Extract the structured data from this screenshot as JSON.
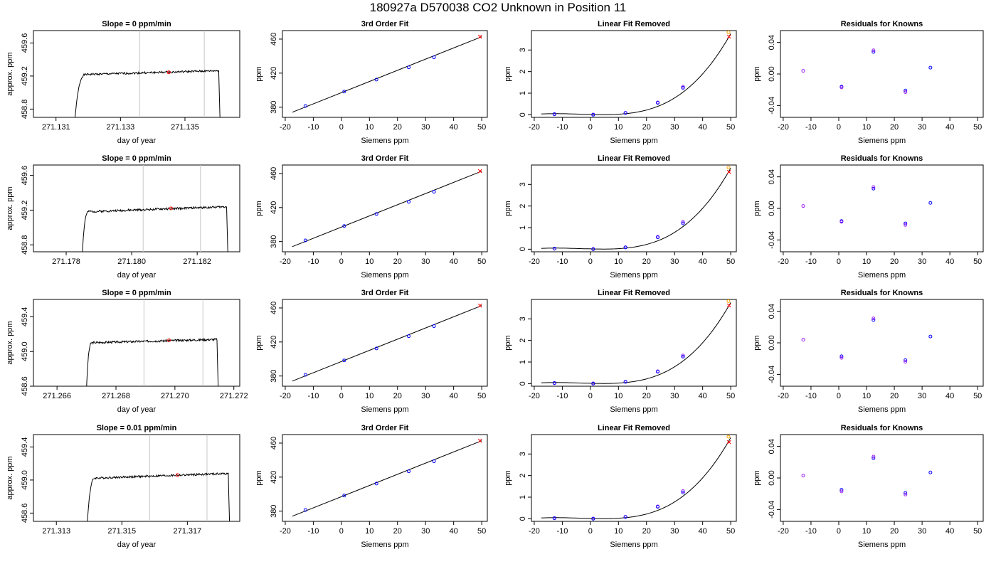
{
  "page": {
    "title": "180927a     D570038    CO2 Unknown in Position  11"
  },
  "chart_data": [
    {
      "type": "line",
      "panel": "trace",
      "title": "Slope =  0  ppm/min",
      "xlabel": "day of year",
      "ylabel": "approx. ppm",
      "xlim": [
        271.1303,
        271.1367
      ],
      "ylim": [
        458.7,
        459.75
      ],
      "xticks": [
        271.131,
        271.133,
        271.135
      ],
      "xticklabels": [
        "271.131",
        "271.133",
        "271.135"
      ],
      "yticks": [
        458.8,
        459.2,
        459.6
      ],
      "yticklabels": [
        "458.8",
        "459.2",
        "459.6"
      ],
      "vlines": [
        271.1336,
        271.1356
      ],
      "marker": {
        "x": 271.1345,
        "y": 459.245
      },
      "trace": {
        "t0": 271.13155,
        "t1": 271.1361,
        "rise_end": 271.13195,
        "base": 459.215,
        "drift": 0.05,
        "amp": 0.012,
        "seed": 1
      }
    },
    {
      "type": "line",
      "panel": "trace",
      "title": "Slope =  0  ppm/min",
      "xlabel": "day of year",
      "ylabel": "approx. ppm",
      "xlim": [
        271.177,
        271.1833
      ],
      "ylim": [
        458.72,
        459.72
      ],
      "xticks": [
        271.178,
        271.18,
        271.182
      ],
      "xticklabels": [
        "271.178",
        "271.180",
        "271.182"
      ],
      "yticks": [
        458.8,
        459.2,
        459.6
      ],
      "yticklabels": [
        "458.8",
        "459.2",
        "459.6"
      ],
      "vlines": [
        271.18035,
        271.1821
      ],
      "marker": {
        "x": 271.1812,
        "y": 459.22
      },
      "trace": {
        "t0": 271.17847,
        "t1": 271.18295,
        "rise_end": 271.1787,
        "base": 459.18,
        "drift": 0.06,
        "amp": 0.012,
        "seed": 2
      }
    },
    {
      "type": "line",
      "panel": "trace",
      "title": "Slope =  0  ppm/min",
      "xlabel": "day of year",
      "ylabel": "approx. ppm",
      "xlim": [
        271.2652,
        271.2722
      ],
      "ylim": [
        458.6,
        459.6
      ],
      "xticks": [
        271.266,
        271.268,
        271.27,
        271.272
      ],
      "xticklabels": [
        "271.266",
        "271.268",
        "271.270",
        "271.272"
      ],
      "yticks": [
        458.6,
        459.0,
        459.4
      ],
      "yticklabels": [
        "458.6",
        "459.0",
        "459.4"
      ],
      "vlines": [
        271.26895,
        271.27095
      ],
      "marker": {
        "x": 271.2698,
        "y": 459.13
      },
      "trace": {
        "t0": 271.26698,
        "t1": 271.27148,
        "rise_end": 271.2672,
        "base": 459.1,
        "drift": 0.04,
        "amp": 0.012,
        "seed": 3
      }
    },
    {
      "type": "line",
      "panel": "trace",
      "title": "Slope =  0.01  ppm/min",
      "xlabel": "day of year",
      "ylabel": "approx. ppm",
      "xlim": [
        271.3123,
        271.3186
      ],
      "ylim": [
        458.5,
        459.55
      ],
      "xticks": [
        271.313,
        271.315,
        271.317
      ],
      "xticklabels": [
        "271.313",
        "271.315",
        "271.317"
      ],
      "yticks": [
        458.6,
        459.0,
        459.4
      ],
      "yticklabels": [
        "458.6",
        "459.0",
        "459.4"
      ],
      "vlines": [
        271.31585,
        271.3176
      ],
      "marker": {
        "x": 271.3167,
        "y": 459.06
      },
      "trace": {
        "t0": 271.31392,
        "t1": 271.3183,
        "rise_end": 271.3142,
        "base": 459.02,
        "drift": 0.06,
        "amp": 0.012,
        "seed": 4
      }
    },
    {
      "type": "scatter",
      "panel": "fit3",
      "title": "3rd Order Fit",
      "xlabel": "Siemens ppm",
      "ylabel": "ppm",
      "xlim": [
        -21,
        52
      ],
      "ylim": [
        368,
        470
      ],
      "xticks": [
        -20,
        -10,
        0,
        10,
        20,
        30,
        40,
        50
      ],
      "yticks": [
        380,
        420,
        460
      ],
      "points": {
        "x": [
          -12.8,
          1.0,
          12.5,
          24.0,
          33.0
        ],
        "y": [
          381.4,
          398.3,
          412.4,
          426.8,
          438.6
        ]
      },
      "unknown": {
        "x": 49.4,
        "y": 462.8
      },
      "fit": {
        "x0": -17.5,
        "x1": 50,
        "a": 397.0,
        "b": 1.315
      }
    },
    {
      "type": "scatter",
      "panel": "fit3",
      "title": "3rd Order Fit",
      "xlabel": "Siemens ppm",
      "ylabel": "ppm",
      "xlim": [
        -21,
        52
      ],
      "ylim": [
        368,
        470
      ],
      "xticks": [
        -20,
        -10,
        0,
        10,
        20,
        30,
        40,
        50
      ],
      "yticks": [
        380,
        420,
        460
      ],
      "points": {
        "x": [
          -12.8,
          1.0,
          12.5,
          24.0,
          33.0
        ],
        "y": [
          381.4,
          398.3,
          412.4,
          426.8,
          438.6
        ]
      },
      "unknown": {
        "x": 49.4,
        "y": 462.8
      },
      "fit": {
        "x0": -17.5,
        "x1": 50,
        "a": 397.0,
        "b": 1.315
      }
    },
    {
      "type": "scatter",
      "panel": "fit3",
      "title": "3rd Order Fit",
      "xlabel": "Siemens ppm",
      "ylabel": "ppm",
      "xlim": [
        -21,
        52
      ],
      "ylim": [
        368,
        470
      ],
      "xticks": [
        -20,
        -10,
        0,
        10,
        20,
        30,
        40,
        50
      ],
      "yticks": [
        380,
        420,
        460
      ],
      "points": {
        "x": [
          -12.8,
          1.0,
          12.5,
          24.0,
          33.0
        ],
        "y": [
          381.4,
          398.3,
          412.4,
          426.8,
          438.6
        ]
      },
      "unknown": {
        "x": 49.4,
        "y": 462.8
      },
      "fit": {
        "x0": -17.5,
        "x1": 50,
        "a": 397.0,
        "b": 1.315
      }
    },
    {
      "type": "scatter",
      "panel": "fit3",
      "title": "3rd Order Fit",
      "xlabel": "Siemens ppm",
      "ylabel": "ppm",
      "xlim": [
        -21,
        52
      ],
      "ylim": [
        368,
        470
      ],
      "xticks": [
        -20,
        -10,
        0,
        10,
        20,
        30,
        40,
        50
      ],
      "yticks": [
        380,
        420,
        460
      ],
      "points": {
        "x": [
          -12.8,
          1.0,
          12.5,
          24.0,
          33.0
        ],
        "y": [
          381.4,
          398.3,
          412.4,
          426.8,
          438.6
        ]
      },
      "unknown": {
        "x": 49.4,
        "y": 462.8
      },
      "fit": {
        "x0": -17.5,
        "x1": 50,
        "a": 397.0,
        "b": 1.315
      }
    },
    {
      "type": "scatter",
      "panel": "linres",
      "title": "Linear Fit Removed",
      "xlabel": "Siemens ppm",
      "ylabel": "ppm",
      "xlim": [
        -21,
        52
      ],
      "ylim": [
        -0.12,
        3.9
      ],
      "xticks": [
        -20,
        -10,
        0,
        10,
        20,
        30,
        40,
        50
      ],
      "yticks": [
        0,
        1,
        2,
        3
      ],
      "points": {
        "x": [
          -12.8,
          1.0,
          12.5,
          24.0,
          33.0
        ],
        "y": [
          0.03,
          0.0,
          0.08,
          0.55,
          1.25
        ]
      },
      "points2": {
        "x": [
          -12.8,
          1.0,
          12.5,
          24.0,
          33.0
        ],
        "y": [
          0.02,
          0.01,
          0.09,
          0.57,
          1.3
        ]
      },
      "unknown": {
        "x": 49.4,
        "y": 3.62
      },
      "unknown2": {
        "x": 49.2,
        "y": 3.82
      },
      "fit": {
        "x0": -17.5,
        "x1": 50
      }
    },
    {
      "type": "scatter",
      "panel": "linres",
      "title": "Linear Fit Removed",
      "xlabel": "Siemens ppm",
      "ylabel": "ppm",
      "xlim": [
        -21,
        52
      ],
      "ylim": [
        -0.12,
        3.9
      ],
      "xticks": [
        -20,
        -10,
        0,
        10,
        20,
        30,
        40,
        50
      ],
      "yticks": [
        0,
        1,
        2,
        3
      ],
      "points": {
        "x": [
          -12.8,
          1.0,
          12.5,
          24.0,
          33.0
        ],
        "y": [
          0.03,
          0.0,
          0.08,
          0.55,
          1.2
        ]
      },
      "points2": {
        "x": [
          -12.8,
          1.0,
          12.5,
          24.0,
          33.0
        ],
        "y": [
          0.02,
          0.01,
          0.09,
          0.57,
          1.27
        ]
      },
      "unknown": {
        "x": 49.4,
        "y": 3.58
      },
      "unknown2": {
        "x": 49.2,
        "y": 3.78
      },
      "fit": {
        "x0": -17.5,
        "x1": 50
      }
    },
    {
      "type": "scatter",
      "panel": "linres",
      "title": "Linear Fit Removed",
      "xlabel": "Siemens ppm",
      "ylabel": "ppm",
      "xlim": [
        -21,
        52
      ],
      "ylim": [
        -0.12,
        3.9
      ],
      "xticks": [
        -20,
        -10,
        0,
        10,
        20,
        30,
        40,
        50
      ],
      "yticks": [
        0,
        1,
        2,
        3
      ],
      "points": {
        "x": [
          -12.8,
          1.0,
          12.5,
          24.0,
          33.0
        ],
        "y": [
          0.03,
          0.0,
          0.08,
          0.55,
          1.25
        ]
      },
      "points2": {
        "x": [
          -12.8,
          1.0,
          12.5,
          24.0,
          33.0
        ],
        "y": [
          0.02,
          0.01,
          0.09,
          0.57,
          1.3
        ]
      },
      "unknown": {
        "x": 49.4,
        "y": 3.62
      },
      "unknown2": {
        "x": 49.2,
        "y": 3.82
      },
      "fit": {
        "x0": -17.5,
        "x1": 50
      }
    },
    {
      "type": "scatter",
      "panel": "linres",
      "title": "Linear Fit Removed",
      "xlabel": "Siemens ppm",
      "ylabel": "ppm",
      "xlim": [
        -21,
        52
      ],
      "ylim": [
        -0.12,
        3.9
      ],
      "xticks": [
        -20,
        -10,
        0,
        10,
        20,
        30,
        40,
        50
      ],
      "yticks": [
        0,
        1,
        2,
        3
      ],
      "points": {
        "x": [
          -12.8,
          1.0,
          12.5,
          24.0,
          33.0
        ],
        "y": [
          0.03,
          0.0,
          0.08,
          0.55,
          1.22
        ]
      },
      "points2": {
        "x": [
          -12.8,
          1.0,
          12.5,
          24.0,
          33.0
        ],
        "y": [
          0.02,
          0.01,
          0.09,
          0.57,
          1.28
        ]
      },
      "unknown": {
        "x": 49.4,
        "y": 3.55
      },
      "unknown2": {
        "x": 49.2,
        "y": 3.8
      },
      "fit": {
        "x0": -17.5,
        "x1": 50
      }
    },
    {
      "type": "scatter",
      "panel": "resid",
      "title": "Residuals for Knowns",
      "xlabel": "Siemens ppm",
      "ylabel": "ppm",
      "xlim": [
        -21,
        52
      ],
      "ylim": [
        -0.055,
        0.055
      ],
      "xticks": [
        -20,
        -10,
        0,
        10,
        20,
        30,
        40,
        50
      ],
      "yticks": [
        -0.04,
        0.0,
        0.04
      ],
      "yticklabels": [
        "-0.04",
        "0.00",
        "0.04"
      ],
      "points": {
        "x": [
          -12.8,
          1.0,
          1.0,
          12.5,
          12.5,
          24.0,
          24.0,
          33.0
        ],
        "y": [
          0.004,
          -0.016,
          -0.017,
          0.028,
          0.03,
          -0.021,
          -0.023,
          0.008
        ]
      }
    },
    {
      "type": "scatter",
      "panel": "resid",
      "title": "Residuals for Knowns",
      "xlabel": "Siemens ppm",
      "ylabel": "ppm",
      "xlim": [
        -21,
        52
      ],
      "ylim": [
        -0.055,
        0.055
      ],
      "xticks": [
        -20,
        -10,
        0,
        10,
        20,
        30,
        40,
        50
      ],
      "yticks": [
        -0.04,
        0.0,
        0.04
      ],
      "yticklabels": [
        "-0.04",
        "0.00",
        "0.04"
      ],
      "points": {
        "x": [
          -12.8,
          1.0,
          1.0,
          12.5,
          12.5,
          24.0,
          24.0,
          33.0
        ],
        "y": [
          0.003,
          -0.016,
          -0.017,
          0.025,
          0.027,
          -0.019,
          -0.021,
          0.007
        ]
      }
    },
    {
      "type": "scatter",
      "panel": "resid",
      "title": "Residuals for Knowns",
      "xlabel": "Siemens ppm",
      "ylabel": "ppm",
      "xlim": [
        -21,
        52
      ],
      "ylim": [
        -0.055,
        0.055
      ],
      "xticks": [
        -20,
        -10,
        0,
        10,
        20,
        30,
        40,
        50
      ],
      "yticks": [
        -0.04,
        0.0,
        0.04
      ],
      "yticklabels": [
        "-0.04",
        "0.00",
        "0.04"
      ],
      "points": {
        "x": [
          -12.8,
          1.0,
          1.0,
          12.5,
          12.5,
          24.0,
          24.0,
          33.0
        ],
        "y": [
          0.004,
          -0.017,
          -0.019,
          0.029,
          0.031,
          -0.022,
          -0.024,
          0.008
        ]
      }
    },
    {
      "type": "scatter",
      "panel": "resid",
      "title": "Residuals for Knowns",
      "xlabel": "Siemens ppm",
      "ylabel": "ppm",
      "xlim": [
        -21,
        52
      ],
      "ylim": [
        -0.055,
        0.055
      ],
      "xticks": [
        -20,
        -10,
        0,
        10,
        20,
        30,
        40,
        50
      ],
      "yticks": [
        -0.04,
        0.0,
        0.04
      ],
      "yticklabels": [
        "-0.04",
        "0.00",
        "0.04"
      ],
      "points": {
        "x": [
          -12.8,
          1.0,
          1.0,
          12.5,
          12.5,
          24.0,
          24.0,
          33.0
        ],
        "y": [
          0.003,
          -0.015,
          -0.017,
          0.025,
          0.027,
          -0.019,
          -0.021,
          0.007
        ]
      }
    }
  ],
  "colors": {
    "trace": "#000000",
    "vline": "#c8c8c8",
    "marker": "#ff0000",
    "known": "#0000ff",
    "known2": "#a020f0",
    "unknown": "#ff0000",
    "unknown2": "#ffa500"
  }
}
